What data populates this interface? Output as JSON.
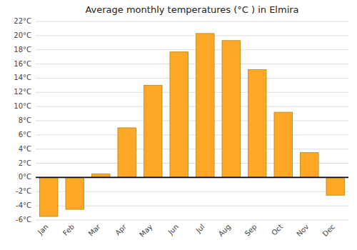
{
  "chart_data": {
    "type": "bar",
    "title": "Average monthly temperatures (°C ) in Elmira",
    "categories": [
      "Jan",
      "Feb",
      "Mar",
      "Apr",
      "May",
      "Jun",
      "Jul",
      "Aug",
      "Sep",
      "Oct",
      "Nov",
      "Dec"
    ],
    "values": [
      -5.5,
      -4.5,
      0.5,
      7.0,
      13.0,
      17.7,
      20.3,
      19.3,
      15.2,
      9.2,
      3.5,
      -2.5
    ],
    "color": "#FFA726",
    "ylim": [
      -6,
      22
    ],
    "yticks": [
      {
        "value": -6,
        "label": "-6°C"
      },
      {
        "value": -4,
        "label": "-4°C"
      },
      {
        "value": -2,
        "label": "-2°C"
      },
      {
        "value": 0,
        "label": "0°C"
      },
      {
        "value": 2,
        "label": "2°C"
      },
      {
        "value": 4,
        "label": "4°C"
      },
      {
        "value": 6,
        "label": "6°C"
      },
      {
        "value": 8,
        "label": "8°C"
      },
      {
        "value": 10,
        "label": "10°C"
      },
      {
        "value": 12,
        "label": "12°C"
      },
      {
        "value": 14,
        "label": "14°C"
      },
      {
        "value": 16,
        "label": "16°C"
      },
      {
        "value": 18,
        "label": "18°C"
      },
      {
        "value": 20,
        "label": "20°C"
      },
      {
        "value": 22,
        "label": "22°C"
      }
    ],
    "grid": true
  }
}
